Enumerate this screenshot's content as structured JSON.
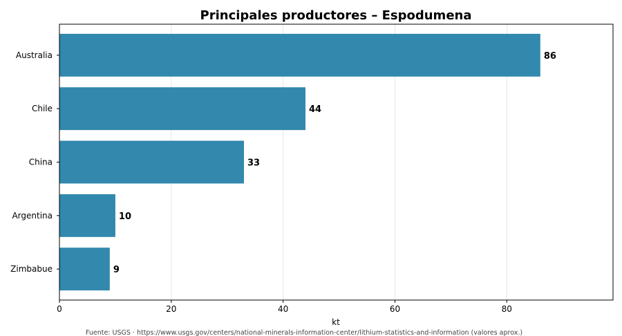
{
  "chart_data": {
    "type": "bar",
    "orientation": "horizontal",
    "title": "Principales productores – Espodumena",
    "categories": [
      "Australia",
      "Chile",
      "China",
      "Argentina",
      "Zimbabue"
    ],
    "values": [
      86,
      44,
      33,
      10,
      9
    ],
    "value_labels": [
      "86",
      "44",
      "33",
      "10",
      "9"
    ],
    "xlabel": "kt",
    "ylabel": "",
    "xlim": [
      0,
      99
    ],
    "xticks": [
      0,
      20,
      40,
      60,
      80
    ],
    "xtick_labels": [
      "0",
      "20",
      "40",
      "60",
      "80"
    ],
    "grid": "vertical",
    "bar_color": "#2e86ab",
    "source": "Fuente: USGS · https://www.usgs.gov/centers/national-minerals-information-center/lithium-statistics-and-information (valores aprox.)"
  }
}
